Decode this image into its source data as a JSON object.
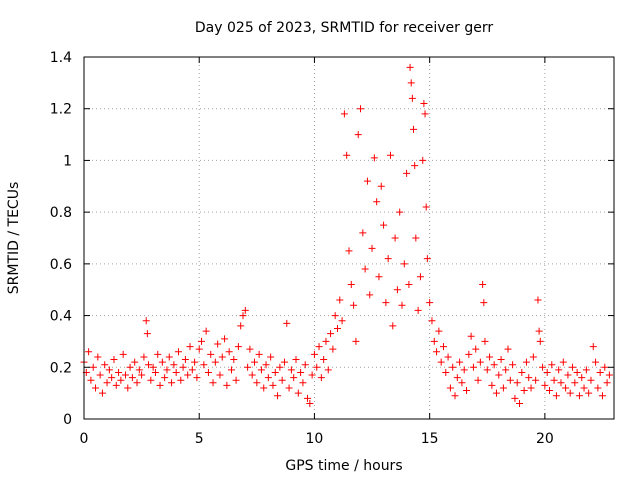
{
  "chart_data": {
    "type": "scatter",
    "title": "Day 025 of 2023, SRMTID for receiver gerr",
    "xlabel": "GPS time / hours",
    "ylabel": "SRMTID / TECUs",
    "xlim": [
      0,
      23
    ],
    "ylim": [
      0,
      1.4
    ],
    "xticks": [
      0,
      5,
      10,
      15,
      20
    ],
    "xtick_labels": [
      "0",
      "5",
      "10",
      "15",
      "20"
    ],
    "yticks": [
      0,
      0.2,
      0.4,
      0.6,
      0.8,
      1.0,
      1.2,
      1.4
    ],
    "ytick_labels": [
      "0",
      "0.2",
      "0.4",
      "0.6",
      "0.8",
      "1",
      "1.2",
      "1.4"
    ],
    "grid": true,
    "marker": "+",
    "series": [
      {
        "name": "SRMTID",
        "color": "#ff0000",
        "points": [
          [
            0.0,
            0.22
          ],
          [
            0.1,
            0.18
          ],
          [
            0.2,
            0.26
          ],
          [
            0.3,
            0.15
          ],
          [
            0.4,
            0.2
          ],
          [
            0.5,
            0.12
          ],
          [
            0.6,
            0.24
          ],
          [
            0.7,
            0.17
          ],
          [
            0.8,
            0.1
          ],
          [
            0.9,
            0.21
          ],
          [
            1.0,
            0.14
          ],
          [
            1.1,
            0.19
          ],
          [
            1.2,
            0.16
          ],
          [
            1.3,
            0.23
          ],
          [
            1.4,
            0.13
          ],
          [
            1.5,
            0.18
          ],
          [
            1.6,
            0.15
          ],
          [
            1.7,
            0.25
          ],
          [
            1.8,
            0.17
          ],
          [
            1.9,
            0.12
          ],
          [
            2.0,
            0.2
          ],
          [
            2.1,
            0.16
          ],
          [
            2.2,
            0.22
          ],
          [
            2.3,
            0.14
          ],
          [
            2.4,
            0.19
          ],
          [
            2.5,
            0.17
          ],
          [
            2.6,
            0.24
          ],
          [
            2.7,
            0.38
          ],
          [
            2.75,
            0.33
          ],
          [
            2.8,
            0.21
          ],
          [
            2.9,
            0.15
          ],
          [
            3.0,
            0.2
          ],
          [
            3.1,
            0.18
          ],
          [
            3.2,
            0.25
          ],
          [
            3.3,
            0.13
          ],
          [
            3.4,
            0.22
          ],
          [
            3.5,
            0.16
          ],
          [
            3.6,
            0.19
          ],
          [
            3.7,
            0.24
          ],
          [
            3.8,
            0.14
          ],
          [
            3.9,
            0.21
          ],
          [
            4.0,
            0.18
          ],
          [
            4.1,
            0.26
          ],
          [
            4.2,
            0.15
          ],
          [
            4.3,
            0.2
          ],
          [
            4.4,
            0.23
          ],
          [
            4.5,
            0.17
          ],
          [
            4.6,
            0.28
          ],
          [
            4.7,
            0.19
          ],
          [
            4.8,
            0.22
          ],
          [
            4.9,
            0.16
          ],
          [
            5.0,
            0.27
          ],
          [
            5.1,
            0.3
          ],
          [
            5.2,
            0.21
          ],
          [
            5.3,
            0.34
          ],
          [
            5.4,
            0.18
          ],
          [
            5.5,
            0.25
          ],
          [
            5.6,
            0.14
          ],
          [
            5.7,
            0.22
          ],
          [
            5.8,
            0.29
          ],
          [
            5.9,
            0.17
          ],
          [
            6.0,
            0.24
          ],
          [
            6.1,
            0.31
          ],
          [
            6.2,
            0.13
          ],
          [
            6.3,
            0.26
          ],
          [
            6.4,
            0.19
          ],
          [
            6.5,
            0.23
          ],
          [
            6.6,
            0.15
          ],
          [
            6.7,
            0.28
          ],
          [
            6.8,
            0.36
          ],
          [
            6.9,
            0.4
          ],
          [
            7.0,
            0.42
          ],
          [
            7.1,
            0.2
          ],
          [
            7.2,
            0.27
          ],
          [
            7.3,
            0.17
          ],
          [
            7.4,
            0.22
          ],
          [
            7.5,
            0.14
          ],
          [
            7.6,
            0.25
          ],
          [
            7.7,
            0.19
          ],
          [
            7.8,
            0.12
          ],
          [
            7.9,
            0.21
          ],
          [
            8.0,
            0.16
          ],
          [
            8.1,
            0.24
          ],
          [
            8.2,
            0.13
          ],
          [
            8.3,
            0.18
          ],
          [
            8.4,
            0.09
          ],
          [
            8.5,
            0.2
          ],
          [
            8.6,
            0.15
          ],
          [
            8.7,
            0.22
          ],
          [
            8.8,
            0.37
          ],
          [
            8.9,
            0.12
          ],
          [
            9.0,
            0.19
          ],
          [
            9.1,
            0.16
          ],
          [
            9.2,
            0.23
          ],
          [
            9.3,
            0.1
          ],
          [
            9.4,
            0.18
          ],
          [
            9.5,
            0.14
          ],
          [
            9.6,
            0.21
          ],
          [
            9.7,
            0.08
          ],
          [
            9.8,
            0.06
          ],
          [
            9.9,
            0.17
          ],
          [
            10.0,
            0.25
          ],
          [
            10.1,
            0.2
          ],
          [
            10.2,
            0.28
          ],
          [
            10.3,
            0.16
          ],
          [
            10.4,
            0.23
          ],
          [
            10.5,
            0.3
          ],
          [
            10.6,
            0.19
          ],
          [
            10.7,
            0.33
          ],
          [
            10.8,
            0.27
          ],
          [
            10.9,
            0.4
          ],
          [
            11.0,
            0.35
          ],
          [
            11.1,
            0.46
          ],
          [
            11.2,
            0.38
          ],
          [
            11.3,
            1.18
          ],
          [
            11.4,
            1.02
          ],
          [
            11.5,
            0.65
          ],
          [
            11.6,
            0.52
          ],
          [
            11.7,
            0.44
          ],
          [
            11.8,
            0.3
          ],
          [
            11.9,
            1.1
          ],
          [
            12.0,
            1.2
          ],
          [
            12.1,
            0.72
          ],
          [
            12.2,
            0.58
          ],
          [
            12.3,
            0.92
          ],
          [
            12.4,
            0.48
          ],
          [
            12.5,
            0.66
          ],
          [
            12.6,
            1.01
          ],
          [
            12.7,
            0.84
          ],
          [
            12.8,
            0.55
          ],
          [
            12.9,
            0.9
          ],
          [
            13.0,
            0.75
          ],
          [
            13.1,
            0.45
          ],
          [
            13.2,
            0.62
          ],
          [
            13.3,
            1.02
          ],
          [
            13.4,
            0.36
          ],
          [
            13.5,
            0.7
          ],
          [
            13.6,
            0.5
          ],
          [
            13.7,
            0.8
          ],
          [
            13.8,
            0.44
          ],
          [
            13.9,
            0.6
          ],
          [
            14.0,
            0.95
          ],
          [
            14.1,
            0.52
          ],
          [
            14.15,
            1.36
          ],
          [
            14.2,
            1.3
          ],
          [
            14.25,
            1.24
          ],
          [
            14.3,
            1.12
          ],
          [
            14.35,
            0.98
          ],
          [
            14.4,
            0.7
          ],
          [
            14.5,
            0.42
          ],
          [
            14.6,
            0.55
          ],
          [
            14.7,
            1.0
          ],
          [
            14.75,
            1.22
          ],
          [
            14.8,
            1.18
          ],
          [
            14.85,
            0.82
          ],
          [
            14.9,
            0.62
          ],
          [
            15.0,
            0.45
          ],
          [
            15.1,
            0.38
          ],
          [
            15.2,
            0.3
          ],
          [
            15.3,
            0.26
          ],
          [
            15.4,
            0.34
          ],
          [
            15.5,
            0.22
          ],
          [
            15.6,
            0.28
          ],
          [
            15.7,
            0.18
          ],
          [
            15.8,
            0.24
          ],
          [
            15.9,
            0.12
          ],
          [
            16.0,
            0.2
          ],
          [
            16.1,
            0.09
          ],
          [
            16.2,
            0.16
          ],
          [
            16.3,
            0.22
          ],
          [
            16.4,
            0.14
          ],
          [
            16.5,
            0.19
          ],
          [
            16.6,
            0.11
          ],
          [
            16.7,
            0.25
          ],
          [
            16.8,
            0.32
          ],
          [
            16.9,
            0.2
          ],
          [
            17.0,
            0.27
          ],
          [
            17.1,
            0.15
          ],
          [
            17.2,
            0.22
          ],
          [
            17.3,
            0.52
          ],
          [
            17.35,
            0.45
          ],
          [
            17.4,
            0.3
          ],
          [
            17.5,
            0.19
          ],
          [
            17.6,
            0.24
          ],
          [
            17.7,
            0.13
          ],
          [
            17.8,
            0.21
          ],
          [
            17.9,
            0.1
          ],
          [
            18.0,
            0.17
          ],
          [
            18.1,
            0.23
          ],
          [
            18.2,
            0.12
          ],
          [
            18.3,
            0.19
          ],
          [
            18.4,
            0.27
          ],
          [
            18.5,
            0.15
          ],
          [
            18.6,
            0.21
          ],
          [
            18.7,
            0.08
          ],
          [
            18.8,
            0.14
          ],
          [
            18.9,
            0.06
          ],
          [
            19.0,
            0.18
          ],
          [
            19.1,
            0.11
          ],
          [
            19.2,
            0.22
          ],
          [
            19.3,
            0.16
          ],
          [
            19.4,
            0.12
          ],
          [
            19.5,
            0.24
          ],
          [
            19.6,
            0.15
          ],
          [
            19.7,
            0.46
          ],
          [
            19.75,
            0.34
          ],
          [
            19.8,
            0.3
          ],
          [
            19.9,
            0.2
          ],
          [
            20.0,
            0.13
          ],
          [
            20.1,
            0.18
          ],
          [
            20.2,
            0.11
          ],
          [
            20.3,
            0.21
          ],
          [
            20.4,
            0.15
          ],
          [
            20.5,
            0.09
          ],
          [
            20.6,
            0.19
          ],
          [
            20.7,
            0.14
          ],
          [
            20.8,
            0.22
          ],
          [
            20.9,
            0.12
          ],
          [
            21.0,
            0.17
          ],
          [
            21.1,
            0.1
          ],
          [
            21.2,
            0.2
          ],
          [
            21.3,
            0.14
          ],
          [
            21.4,
            0.18
          ],
          [
            21.5,
            0.09
          ],
          [
            21.6,
            0.16
          ],
          [
            21.7,
            0.12
          ],
          [
            21.8,
            0.19
          ],
          [
            21.9,
            0.1
          ],
          [
            22.0,
            0.15
          ],
          [
            22.1,
            0.28
          ],
          [
            22.2,
            0.22
          ],
          [
            22.3,
            0.12
          ],
          [
            22.4,
            0.18
          ],
          [
            22.5,
            0.09
          ],
          [
            22.6,
            0.2
          ],
          [
            22.7,
            0.14
          ],
          [
            22.8,
            0.17
          ]
        ]
      }
    ]
  }
}
